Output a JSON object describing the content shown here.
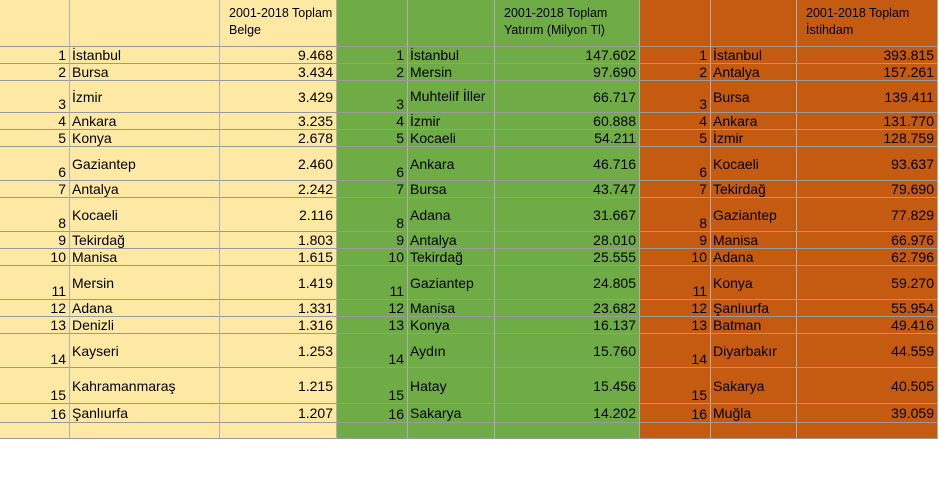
{
  "headers": {
    "belge": "2001-2018 Toplam Belge",
    "yatirim": "2001-2018 Toplam Yatırım (Milyon Tl)",
    "istihdam": "2001-2018 Toplam İstihdam"
  },
  "rows": [
    {
      "rank": "1",
      "city_a": "İstanbul",
      "belge": "9.468",
      "city_b": "İstanbul",
      "yatirim": "147.602",
      "city_c": "İstanbul",
      "istihdam": "393.815"
    },
    {
      "rank": "2",
      "city_a": "Bursa",
      "belge": "3.434",
      "city_b": "Mersin",
      "yatirim": "97.690",
      "city_c": "Antalya",
      "istihdam": "157.261"
    },
    {
      "rank": "3",
      "city_a": "İzmir",
      "belge": "3.429",
      "city_b": "Muhtelif İller",
      "yatirim": "66.717",
      "city_c": "Bursa",
      "istihdam": "139.411"
    },
    {
      "rank": "4",
      "city_a": "Ankara",
      "belge": "3.235",
      "city_b": "İzmir",
      "yatirim": "60.888",
      "city_c": "Ankara",
      "istihdam": "131.770"
    },
    {
      "rank": "5",
      "city_a": "Konya",
      "belge": "2.678",
      "city_b": "Kocaeli",
      "yatirim": "54.211",
      "city_c": "İzmir",
      "istihdam": "128.759"
    },
    {
      "rank": "6",
      "city_a": "Gaziantep",
      "belge": "2.460",
      "city_b": "Ankara",
      "yatirim": "46.716",
      "city_c": "Kocaeli",
      "istihdam": "93.637"
    },
    {
      "rank": "7",
      "city_a": "Antalya",
      "belge": "2.242",
      "city_b": "Bursa",
      "yatirim": "43.747",
      "city_c": "Tekirdağ",
      "istihdam": "79.690"
    },
    {
      "rank": "8",
      "city_a": "Kocaeli",
      "belge": "2.116",
      "city_b": "Adana",
      "yatirim": "31.667",
      "city_c": "Gaziantep",
      "istihdam": "77.829"
    },
    {
      "rank": "9",
      "city_a": "Tekirdağ",
      "belge": "1.803",
      "city_b": "Antalya",
      "yatirim": "28.010",
      "city_c": "Manisa",
      "istihdam": "66.976"
    },
    {
      "rank": "10",
      "city_a": "Manisa",
      "belge": "1.615",
      "city_b": "Tekirdağ",
      "yatirim": "25.555",
      "city_c": "Adana",
      "istihdam": "62.796"
    },
    {
      "rank": "11",
      "city_a": "Mersin",
      "belge": "1.419",
      "city_b": "Gaziantep",
      "yatirim": "24.805",
      "city_c": "Konya",
      "istihdam": "59.270"
    },
    {
      "rank": "12",
      "city_a": "Adana",
      "belge": "1.331",
      "city_b": "Manisa",
      "yatirim": "23.682",
      "city_c": "Şanlıurfa",
      "istihdam": "55.954"
    },
    {
      "rank": "13",
      "city_a": "Denizli",
      "belge": "1.316",
      "city_b": "Konya",
      "yatirim": "16.137",
      "city_c": "Batman",
      "istihdam": "49.416"
    },
    {
      "rank": "14",
      "city_a": "Kayseri",
      "belge": "1.253",
      "city_b": "Aydın",
      "yatirim": "15.760",
      "city_c": "Diyarbakır",
      "istihdam": "44.559"
    },
    {
      "rank": "15",
      "city_a": "Kahramanmaraş",
      "belge": "1.215",
      "city_b": "Hatay",
      "yatirim": "15.456",
      "city_c": "Sakarya",
      "istihdam": "40.505"
    },
    {
      "rank": "16",
      "city_a": "Şanlıurfa",
      "belge": "1.207",
      "city_b": "Sakarya",
      "yatirim": "14.202",
      "city_c": "Muğla",
      "istihdam": "39.059"
    }
  ],
  "colors": {
    "yellow": "#fde9a4",
    "green": "#6fac46",
    "orange": "#c55a11"
  }
}
